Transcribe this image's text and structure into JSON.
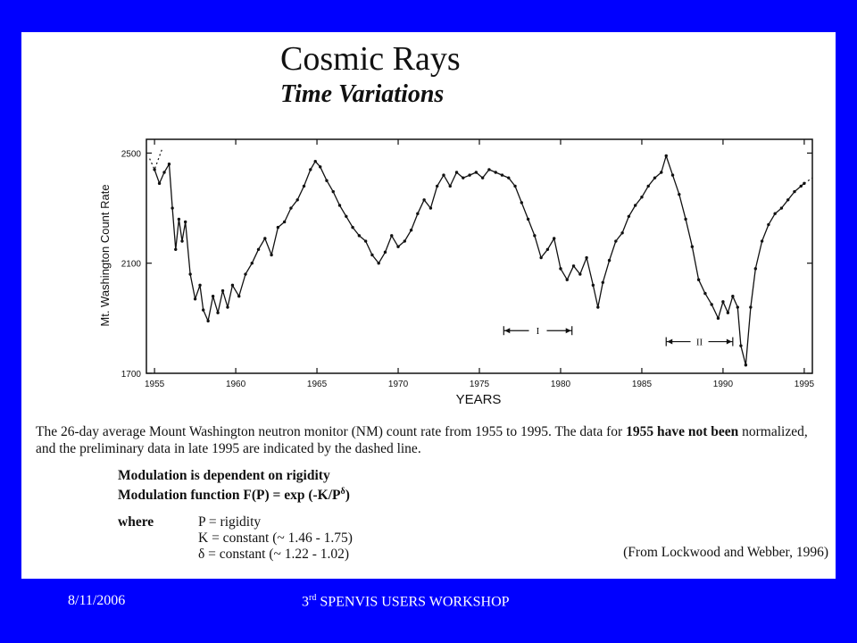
{
  "slide": {
    "title": "Cosmic Rays",
    "subtitle": "Time Variations"
  },
  "chart_data": {
    "type": "line",
    "title": "",
    "xlabel": "YEARS",
    "ylabel": "Mt. Washington Count Rate",
    "xlim": [
      1954.5,
      1995.5
    ],
    "ylim": [
      1700,
      2550
    ],
    "x_ticks": [
      1955,
      1960,
      1965,
      1970,
      1975,
      1980,
      1985,
      1990,
      1995
    ],
    "y_ticks": [
      1700,
      2100,
      2500
    ],
    "grid": false,
    "series": [
      {
        "points": [
          [
            1955.0,
            2440
          ],
          [
            1955.3,
            2390
          ],
          [
            1955.6,
            2430
          ],
          [
            1955.9,
            2460
          ],
          [
            1956.1,
            2300
          ],
          [
            1956.3,
            2150
          ],
          [
            1956.5,
            2260
          ],
          [
            1956.7,
            2180
          ],
          [
            1956.9,
            2250
          ],
          [
            1957.2,
            2060
          ],
          [
            1957.5,
            1970
          ],
          [
            1957.8,
            2020
          ],
          [
            1958.0,
            1930
          ],
          [
            1958.3,
            1890
          ],
          [
            1958.6,
            1980
          ],
          [
            1958.9,
            1920
          ],
          [
            1959.2,
            2000
          ],
          [
            1959.5,
            1940
          ],
          [
            1959.8,
            2020
          ],
          [
            1960.2,
            1980
          ],
          [
            1960.6,
            2060
          ],
          [
            1961.0,
            2100
          ],
          [
            1961.4,
            2150
          ],
          [
            1961.8,
            2190
          ],
          [
            1962.2,
            2130
          ],
          [
            1962.6,
            2230
          ],
          [
            1963.0,
            2250
          ],
          [
            1963.4,
            2300
          ],
          [
            1963.8,
            2330
          ],
          [
            1964.2,
            2380
          ],
          [
            1964.6,
            2440
          ],
          [
            1964.9,
            2470
          ],
          [
            1965.2,
            2450
          ],
          [
            1965.6,
            2400
          ],
          [
            1966.0,
            2360
          ],
          [
            1966.4,
            2310
          ],
          [
            1966.8,
            2270
          ],
          [
            1967.2,
            2230
          ],
          [
            1967.6,
            2200
          ],
          [
            1968.0,
            2180
          ],
          [
            1968.4,
            2130
          ],
          [
            1968.8,
            2100
          ],
          [
            1969.2,
            2140
          ],
          [
            1969.6,
            2200
          ],
          [
            1970.0,
            2160
          ],
          [
            1970.4,
            2180
          ],
          [
            1970.8,
            2220
          ],
          [
            1971.2,
            2280
          ],
          [
            1971.6,
            2330
          ],
          [
            1972.0,
            2300
          ],
          [
            1972.4,
            2380
          ],
          [
            1972.8,
            2420
          ],
          [
            1973.2,
            2380
          ],
          [
            1973.6,
            2430
          ],
          [
            1974.0,
            2410
          ],
          [
            1974.4,
            2420
          ],
          [
            1974.8,
            2430
          ],
          [
            1975.2,
            2410
          ],
          [
            1975.6,
            2440
          ],
          [
            1976.0,
            2430
          ],
          [
            1976.4,
            2420
          ],
          [
            1976.8,
            2410
          ],
          [
            1977.2,
            2380
          ],
          [
            1977.6,
            2320
          ],
          [
            1978.0,
            2260
          ],
          [
            1978.4,
            2200
          ],
          [
            1978.8,
            2120
          ],
          [
            1979.2,
            2150
          ],
          [
            1979.6,
            2190
          ],
          [
            1980.0,
            2080
          ],
          [
            1980.4,
            2040
          ],
          [
            1980.8,
            2090
          ],
          [
            1981.2,
            2060
          ],
          [
            1981.6,
            2120
          ],
          [
            1982.0,
            2020
          ],
          [
            1982.3,
            1940
          ],
          [
            1982.6,
            2030
          ],
          [
            1983.0,
            2110
          ],
          [
            1983.4,
            2180
          ],
          [
            1983.8,
            2210
          ],
          [
            1984.2,
            2270
          ],
          [
            1984.6,
            2310
          ],
          [
            1985.0,
            2340
          ],
          [
            1985.4,
            2380
          ],
          [
            1985.8,
            2410
          ],
          [
            1986.2,
            2430
          ],
          [
            1986.5,
            2490
          ],
          [
            1986.9,
            2420
          ],
          [
            1987.3,
            2350
          ],
          [
            1987.7,
            2260
          ],
          [
            1988.1,
            2160
          ],
          [
            1988.5,
            2040
          ],
          [
            1988.9,
            1990
          ],
          [
            1989.3,
            1950
          ],
          [
            1989.7,
            1900
          ],
          [
            1990.0,
            1960
          ],
          [
            1990.3,
            1920
          ],
          [
            1990.6,
            1980
          ],
          [
            1990.9,
            1940
          ],
          [
            1991.1,
            1800
          ],
          [
            1991.4,
            1730
          ],
          [
            1991.7,
            1940
          ],
          [
            1992.0,
            2080
          ],
          [
            1992.4,
            2180
          ],
          [
            1992.8,
            2240
          ],
          [
            1993.2,
            2280
          ],
          [
            1993.6,
            2300
          ],
          [
            1994.0,
            2330
          ],
          [
            1994.4,
            2360
          ],
          [
            1994.8,
            2380
          ],
          [
            1995.0,
            2390
          ]
        ]
      },
      {
        "style": "dashed",
        "points": [
          [
            1954.7,
            2480
          ],
          [
            1955.0,
            2440
          ],
          [
            1955.5,
            2520
          ]
        ]
      },
      {
        "style": "dashed",
        "points": [
          [
            1995.0,
            2390
          ],
          [
            1995.5,
            2410
          ]
        ]
      }
    ],
    "annotations": [
      {
        "label": "I",
        "x_start": 1976.5,
        "x_end": 1980.7,
        "y": 1855
      },
      {
        "label": "II",
        "x_start": 1986.5,
        "x_end": 1990.6,
        "y": 1815
      }
    ]
  },
  "caption": {
    "text_1": "The 26-day average Mount Washington neutron monitor (NM) count rate from 1955 to 1995.  The data for ",
    "bold_1": "1955 have not been",
    "text_2": " normalized, and the preliminary data in late 1995 are indicated by the dashed line."
  },
  "modulation": {
    "line_1": "Modulation is dependent on rigidity",
    "line_2_prefix": "Modulation function F(P) = exp (-K/P",
    "line_2_sup": "δ",
    "line_2_suffix": ")"
  },
  "where": {
    "label": "where",
    "def_1": "P = rigidity",
    "def_2": "K = constant (~ 1.46 - 1.75)",
    "def_3": "δ = constant (~ 1.22 - 1.02)"
  },
  "citation": "(From Lockwood and Webber, 1996)",
  "footer": {
    "date": "8/11/2006",
    "title_prefix": "3",
    "title_sup": "rd",
    "title_suffix": " SPENVIS USERS WORKSHOP"
  }
}
